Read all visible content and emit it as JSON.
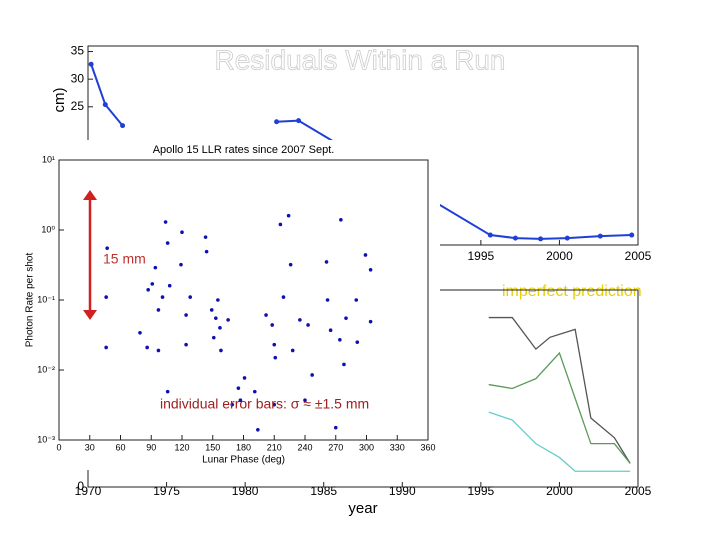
{
  "slide_title": "Residuals Within a Run",
  "chart_data": [
    {
      "type": "line",
      "y_label": "cm)",
      "xlim": [
        1970,
        2005
      ],
      "ylim": [
        0,
        36
      ],
      "xticks": [
        1995,
        2000,
        2005
      ],
      "yticks": [
        25,
        30,
        35
      ],
      "markers": true,
      "series": [
        {
          "color": "#1f3fd6",
          "x": [
            1970.2,
            1971.1,
            1972.2,
            null,
            1982.0,
            1983.4,
            1995.6,
            1997.2,
            1998.8,
            2000.5,
            2002.6,
            2004.6
          ],
          "values": [
            32.7,
            25.4,
            21.6,
            null,
            22.3,
            22.5,
            1.8,
            1.25,
            1.1,
            1.25,
            1.6,
            1.8
          ]
        }
      ]
    },
    {
      "type": "line",
      "x_label": "year",
      "annotation": "imperfect prediction",
      "xlim": [
        1970,
        2005
      ],
      "ylim": [
        0,
        1
      ],
      "xticks": [
        1970,
        1975,
        1980,
        1985,
        1990,
        1995,
        2000,
        2005
      ],
      "yticks": [
        0
      ],
      "series": [
        {
          "color": "#555555",
          "x": [
            1995.5,
            1997,
            1998.5,
            1999.4,
            2001,
            2002,
            2003.5,
            2004.5
          ],
          "values": [
            0.86,
            0.86,
            0.7,
            0.76,
            0.8,
            0.35,
            0.25,
            0.12
          ]
        },
        {
          "color": "#5a9a5a",
          "x": [
            1995.5,
            1997,
            1998.5,
            2000,
            2001,
            2002,
            2003.5,
            2004.5
          ],
          "values": [
            0.52,
            0.5,
            0.55,
            0.68,
            0.45,
            0.22,
            0.22,
            0.12
          ]
        },
        {
          "color": "#66cccc",
          "x": [
            1995.5,
            1997,
            1998.5,
            2000,
            2001,
            2002,
            2004.5
          ],
          "values": [
            0.38,
            0.34,
            0.22,
            0.15,
            0.08,
            0.08,
            0.08
          ]
        }
      ]
    },
    {
      "type": "scatter",
      "title": "Apollo 15 LLR rates since 2007 Sept.",
      "x_label": "Lunar Phase (deg)",
      "y_label": "Photon Rate per shot",
      "annotations": [
        "15 mm",
        "individual error bars: σ ≈ ±1.5 mm"
      ],
      "log_y": true,
      "xlim": [
        0,
        360
      ],
      "ylim": [
        0.001,
        10
      ],
      "xticks": [
        0,
        30,
        60,
        90,
        120,
        150,
        180,
        210,
        240,
        270,
        300,
        330,
        360
      ],
      "yticks": [
        {
          "value": 0.001,
          "label": "10⁻³"
        },
        {
          "value": 0.01,
          "label": "10⁻²"
        },
        {
          "value": 0.1,
          "label": "10⁻¹"
        },
        {
          "value": 1,
          "label": "10⁰"
        },
        {
          "value": 10,
          "label": "10¹"
        }
      ],
      "series": [
        {
          "color": "#1010b0",
          "x": [
            47,
            46,
            46,
            79,
            86,
            87,
            91,
            94,
            97,
            97,
            101,
            104,
            106,
            108,
            106,
            119,
            120,
            124,
            124,
            128,
            143,
            144,
            149,
            151,
            153,
            155,
            157,
            158,
            165,
            169,
            175,
            177,
            181,
            191,
            194,
            202,
            208,
            210,
            211,
            210,
            216,
            219,
            224,
            226,
            228,
            235,
            240,
            243,
            247,
            261,
            262,
            265,
            270,
            275,
            274,
            278,
            280,
            290,
            291,
            299,
            304,
            304
          ],
          "values": [
            0.55,
            0.11,
            0.021,
            0.034,
            0.021,
            0.14,
            0.17,
            0.29,
            0.072,
            0.019,
            0.11,
            1.3,
            0.65,
            0.16,
            0.0049,
            0.32,
            0.93,
            0.061,
            0.023,
            0.11,
            0.79,
            0.49,
            0.072,
            0.029,
            0.055,
            0.1,
            0.04,
            0.019,
            0.052,
            0.0032,
            0.0055,
            0.0037,
            0.0077,
            0.0049,
            0.0014,
            0.061,
            0.044,
            0.023,
            0.015,
            0.0032,
            1.2,
            0.11,
            1.6,
            0.32,
            0.019,
            0.052,
            0.0037,
            0.044,
            0.0085,
            0.35,
            0.1,
            0.037,
            0.0015,
            1.4,
            0.027,
            0.012,
            0.055,
            0.1,
            0.025,
            0.44,
            0.27,
            0.049
          ]
        }
      ]
    }
  ]
}
